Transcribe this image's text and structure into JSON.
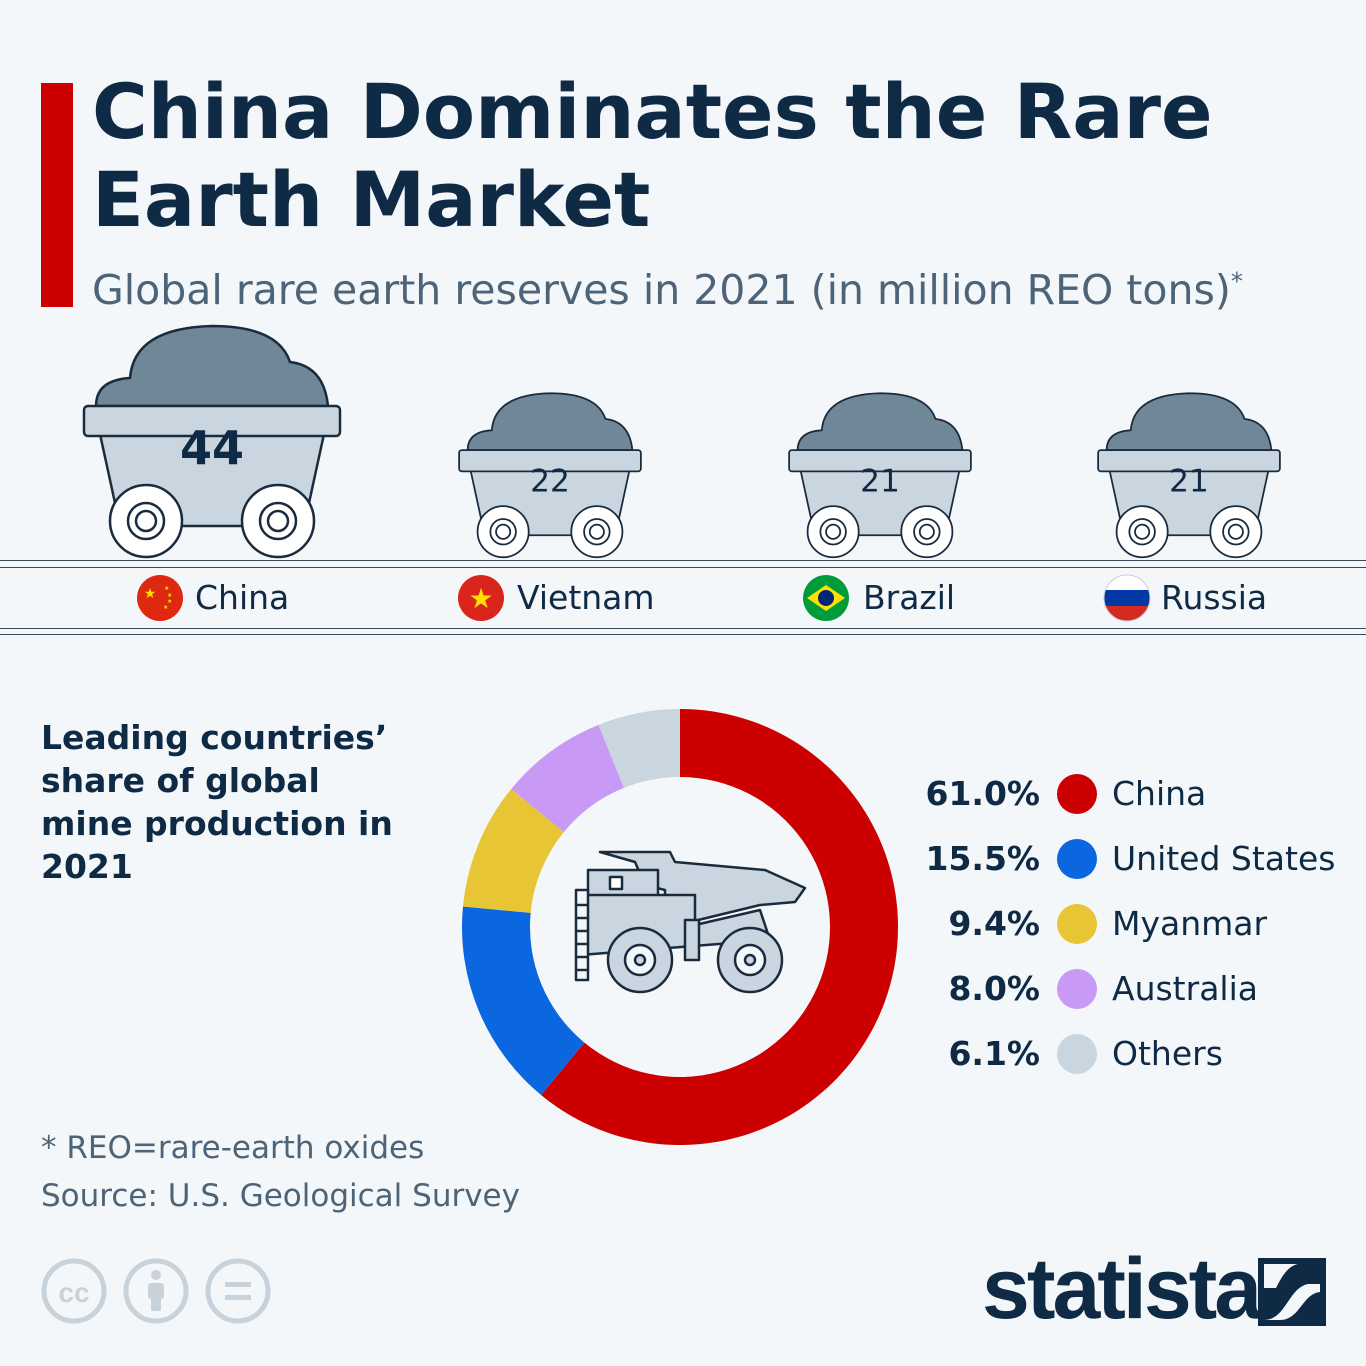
{
  "title": "China Dominates the Rare Earth Market",
  "subtitle": "Global rare earth reserves in 2021 (in million REO tons)",
  "subtitle_mark": "*",
  "colors": {
    "accent": "#cc0000",
    "navy": "#0f2a45",
    "ore": "#6f8796",
    "cart": "#c9d6df"
  },
  "chart_data": [
    {
      "type": "pictogram-bar",
      "title": "Global rare earth reserves in 2021 (in million REO tons)",
      "categories": [
        "China",
        "Vietnam",
        "Brazil",
        "Russia"
      ],
      "values": [
        44,
        22,
        21,
        21
      ],
      "value_labels": [
        "44",
        "22",
        "21",
        "21"
      ],
      "flags": [
        "china-flag-icon",
        "vietnam-flag-icon",
        "brazil-flag-icon",
        "russia-flag-icon"
      ]
    },
    {
      "type": "pie",
      "donut": true,
      "title": "Leading countries’ share of global mine production in 2021",
      "categories": [
        "China",
        "United States",
        "Myanmar",
        "Australia",
        "Others"
      ],
      "values": [
        61.0,
        15.5,
        9.4,
        8.0,
        6.1
      ],
      "value_labels": [
        "61.0%",
        "15.5%",
        "9.4%",
        "8.0%",
        "6.1%"
      ],
      "colors": [
        "#cc0000",
        "#0a67e0",
        "#e8c534",
        "#c89af5",
        "#c9d6df"
      ],
      "legend_placement": "right",
      "center_icon": "dump-truck-icon"
    }
  ],
  "footnote": "* REO=rare-earth oxides",
  "source": "Source: U.S. Geological Survey",
  "license_icons": [
    "cc-icon",
    "attribution-icon",
    "no-derivatives-icon"
  ],
  "brand": "statista"
}
